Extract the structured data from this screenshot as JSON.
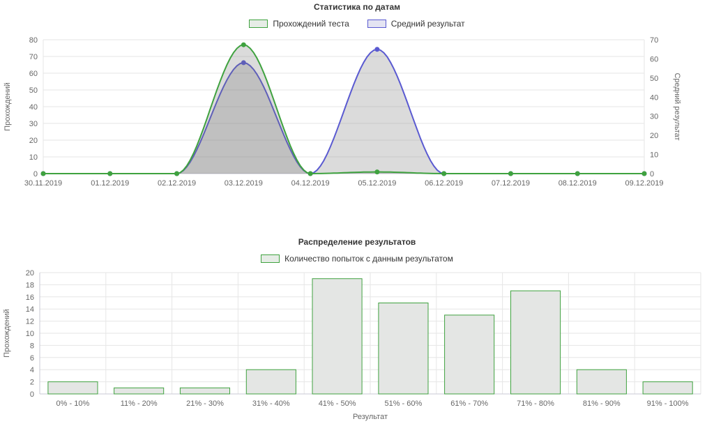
{
  "theme": {
    "grid": "#e6e6e6",
    "axis_line": "#c9c9d4",
    "tick_text": "#666666",
    "title_color": "#333333",
    "legend_text": "#333333",
    "green_swatch_fill": "#e6ece6",
    "blue_swatch_fill": "#e4e4f2",
    "area_fill": "rgba(110,110,110,0.25)"
  },
  "chart_data": [
    {
      "type": "line",
      "title": "Статистика по датам",
      "categories": [
        "30.11.2019",
        "01.12.2019",
        "02.12.2019",
        "03.12.2019",
        "04.12.2019",
        "05.12.2019",
        "06.12.2019",
        "07.12.2019",
        "08.12.2019",
        "09.12.2019"
      ],
      "series": [
        {
          "name": "Прохождений теста",
          "color": "#3fa23f",
          "axis": "left",
          "values": [
            0,
            0,
            0,
            77,
            0,
            1,
            0,
            0,
            0,
            0
          ]
        },
        {
          "name": "Средний результат",
          "color": "#5a5ad1",
          "axis": "right",
          "values": [
            0,
            0,
            0,
            58,
            0,
            65,
            0,
            0,
            0,
            0
          ]
        }
      ],
      "axes": {
        "left": {
          "title": "Прохождений",
          "min": 0,
          "max": 80,
          "step": 10
        },
        "right": {
          "title": "Средний результат",
          "min": 0,
          "max": 70,
          "step": 10
        }
      },
      "grid": true,
      "legend_position": "top"
    },
    {
      "type": "bar",
      "title": "Распределение результатов",
      "legend": "Количество попыток с данным результатом",
      "categories": [
        "0% - 10%",
        "11% - 20%",
        "21% - 30%",
        "31% - 40%",
        "41% - 50%",
        "51% - 60%",
        "61% - 70%",
        "71% - 80%",
        "81% - 90%",
        "91% - 100%"
      ],
      "values": [
        2,
        1,
        1,
        4,
        19,
        15,
        13,
        17,
        4,
        2
      ],
      "xlabel": "Результат",
      "ylabel": "Прохождений",
      "ylim": [
        0,
        20
      ],
      "ystep": 2,
      "colors": {
        "bar_fill": "#e4e6e4",
        "bar_stroke": "#3fa23f"
      },
      "grid": true,
      "legend_position": "top"
    }
  ]
}
